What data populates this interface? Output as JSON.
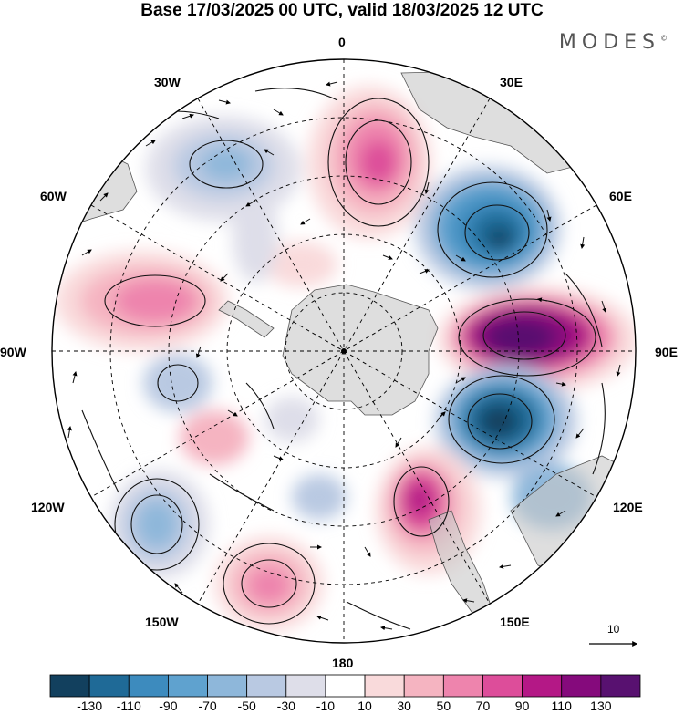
{
  "header": {
    "title": "Base 17/03/2025 00 UTC, valid 18/03/2025 12 UTC",
    "brand": "MODES"
  },
  "map": {
    "projection": "south-polar-stereographic",
    "longitude_labels": {
      "top": "0",
      "top_right": "30E",
      "upper_right": "60E",
      "right": "90E",
      "lower_right": "120E",
      "bottom_right": "150E",
      "bottom": "180",
      "bottom_left": "150W",
      "lower_left": "120W",
      "left": "90W",
      "upper_left": "60W",
      "top_left": "30W"
    },
    "reference_vector_label": "10",
    "anomaly_centers": [
      {
        "lon": "10E",
        "sign": "positive",
        "max_class": "70"
      },
      {
        "lon": "50E",
        "sign": "negative",
        "max_class": "-130"
      },
      {
        "lon": "90E",
        "sign": "positive",
        "max_class": "130"
      },
      {
        "lon": "115E",
        "sign": "negative",
        "max_class": "-130"
      },
      {
        "lon": "155E",
        "sign": "positive",
        "max_class": "90"
      },
      {
        "lon": "160W",
        "sign": "positive",
        "max_class": "50"
      },
      {
        "lon": "130W",
        "sign": "negative",
        "max_class": "-50"
      },
      {
        "lon": "75W",
        "sign": "positive",
        "max_class": "70"
      },
      {
        "lon": "35W",
        "sign": "negative",
        "max_class": "-50"
      }
    ]
  },
  "colorbar": {
    "ticks": [
      "-130",
      "-110",
      "-90",
      "-70",
      "-50",
      "-30",
      "-10",
      "10",
      "30",
      "50",
      "70",
      "90",
      "110",
      "130"
    ],
    "colors": [
      "#12405e",
      "#1f6a97",
      "#3d8bbe",
      "#5fa2cf",
      "#8eb7da",
      "#b9c9e2",
      "#dedee9",
      "#ffffff",
      "#f9dadb",
      "#f5b4c1",
      "#ee84ad",
      "#dd4d9a",
      "#b41886",
      "#850a7c",
      "#581170"
    ]
  }
}
